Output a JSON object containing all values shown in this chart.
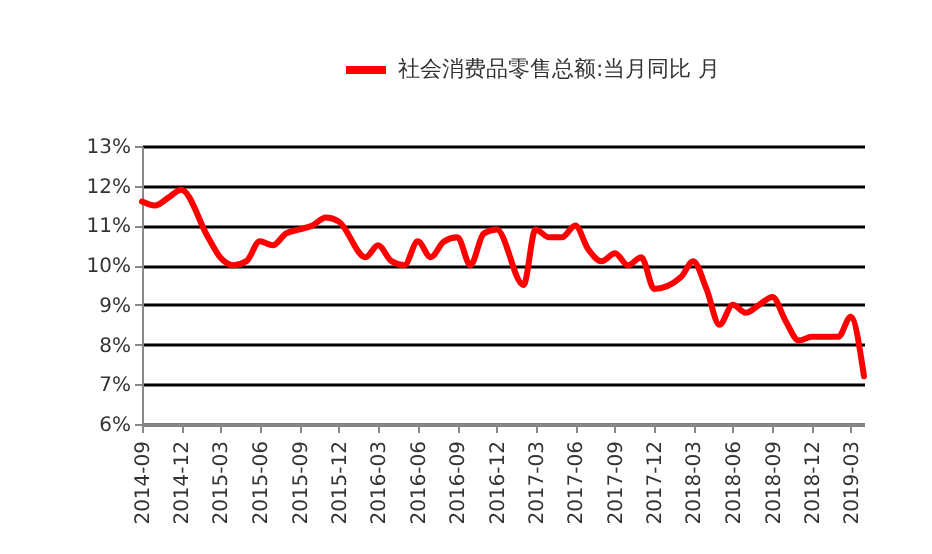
{
  "chart_data": {
    "type": "line",
    "x": [
      "2014-09",
      "2014-10",
      "2014-11",
      "2014-12",
      "2015-02",
      "2015-03",
      "2015-04",
      "2015-05",
      "2015-06",
      "2015-07",
      "2015-08",
      "2015-09",
      "2015-10",
      "2015-11",
      "2015-12",
      "2016-02",
      "2016-03",
      "2016-04",
      "2016-05",
      "2016-06",
      "2016-07",
      "2016-08",
      "2016-09",
      "2016-10",
      "2016-11",
      "2016-12",
      "2017-02",
      "2017-03",
      "2017-04",
      "2017-05",
      "2017-06",
      "2017-07",
      "2017-08",
      "2017-09",
      "2017-10",
      "2017-11",
      "2017-12",
      "2018-02",
      "2018-03",
      "2018-04",
      "2018-05",
      "2018-06",
      "2018-07",
      "2018-08",
      "2018-09",
      "2018-10",
      "2018-11",
      "2018-12",
      "2019-02",
      "2019-03",
      "2019-04"
    ],
    "series": [
      {
        "name": "社会消费品零售总额:当月同比 月",
        "color": "#ff0000",
        "values": [
          11.6,
          11.5,
          11.7,
          11.9,
          10.7,
          10.2,
          10.0,
          10.1,
          10.6,
          10.5,
          10.8,
          10.9,
          11.0,
          11.2,
          11.1,
          10.2,
          10.5,
          10.1,
          10.0,
          10.6,
          10.2,
          10.6,
          10.7,
          10.0,
          10.8,
          10.9,
          9.5,
          10.9,
          10.7,
          10.7,
          11.0,
          10.4,
          10.1,
          10.3,
          10.0,
          10.2,
          9.4,
          9.7,
          10.1,
          9.4,
          8.5,
          9.0,
          8.8,
          9.0,
          9.2,
          8.6,
          8.1,
          8.2,
          8.2,
          8.7,
          7.2
        ]
      }
    ],
    "xlim": [
      "2014-09",
      "2019-04"
    ],
    "xticks": [
      "2014-09",
      "2014-12",
      "2015-03",
      "2015-06",
      "2015-09",
      "2015-12",
      "2016-03",
      "2016-06",
      "2016-09",
      "2016-12",
      "2017-03",
      "2017-06",
      "2017-09",
      "2017-12",
      "2018-03",
      "2018-06",
      "2018-09",
      "2018-12",
      "2019-03"
    ],
    "ylim": [
      6,
      13
    ],
    "yticks": [
      {
        "value": 6,
        "label": "6%"
      },
      {
        "value": 7,
        "label": "7%"
      },
      {
        "value": 8,
        "label": "8%"
      },
      {
        "value": 9,
        "label": "9%"
      },
      {
        "value": 10,
        "label": "10%"
      },
      {
        "value": 11,
        "label": "11%"
      },
      {
        "value": 12,
        "label": "12%"
      },
      {
        "value": 13,
        "label": "13%"
      }
    ],
    "grid": "y",
    "legend": "top",
    "line_style": "solid"
  }
}
